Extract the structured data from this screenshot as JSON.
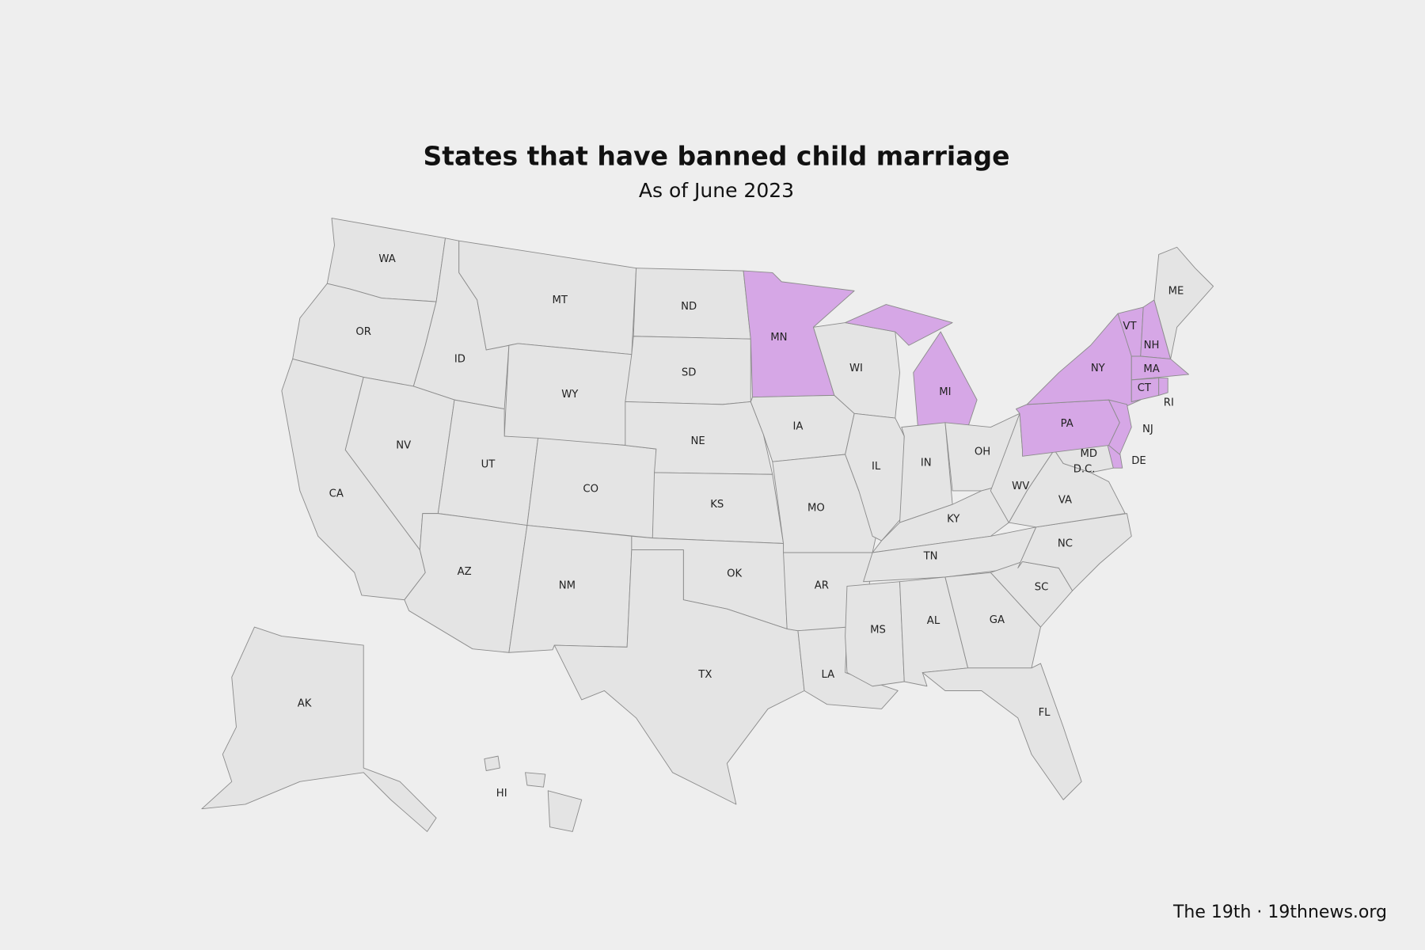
{
  "title": "States that have banned child marriage",
  "subtitle": "As of June 2023",
  "credit": "The 19th · 19thnews.org",
  "colors": {
    "highlighted": "#d6a7e6",
    "other": "#e4e4e4",
    "border": "#8c8c8c"
  },
  "states": [
    {
      "label": "WA",
      "highlighted": false
    },
    {
      "label": "OR",
      "highlighted": false
    },
    {
      "label": "CA",
      "highlighted": false
    },
    {
      "label": "ID",
      "highlighted": false
    },
    {
      "label": "NV",
      "highlighted": false
    },
    {
      "label": "MT",
      "highlighted": false
    },
    {
      "label": "WY",
      "highlighted": false
    },
    {
      "label": "UT",
      "highlighted": false
    },
    {
      "label": "AZ",
      "highlighted": false
    },
    {
      "label": "CO",
      "highlighted": false
    },
    {
      "label": "NM",
      "highlighted": false
    },
    {
      "label": "ND",
      "highlighted": false
    },
    {
      "label": "SD",
      "highlighted": false
    },
    {
      "label": "NE",
      "highlighted": false
    },
    {
      "label": "KS",
      "highlighted": false
    },
    {
      "label": "OK",
      "highlighted": false
    },
    {
      "label": "TX",
      "highlighted": false
    },
    {
      "label": "MN",
      "highlighted": true
    },
    {
      "label": "IA",
      "highlighted": false
    },
    {
      "label": "MO",
      "highlighted": false
    },
    {
      "label": "AR",
      "highlighted": false
    },
    {
      "label": "LA",
      "highlighted": false
    },
    {
      "label": "WI",
      "highlighted": false
    },
    {
      "label": "IL",
      "highlighted": false
    },
    {
      "label": "MI",
      "highlighted": true
    },
    {
      "label": "IN",
      "highlighted": false
    },
    {
      "label": "OH",
      "highlighted": false
    },
    {
      "label": "KY",
      "highlighted": false
    },
    {
      "label": "TN",
      "highlighted": false
    },
    {
      "label": "MS",
      "highlighted": false
    },
    {
      "label": "AL",
      "highlighted": false
    },
    {
      "label": "GA",
      "highlighted": false
    },
    {
      "label": "FL",
      "highlighted": false
    },
    {
      "label": "SC",
      "highlighted": false
    },
    {
      "label": "NC",
      "highlighted": false
    },
    {
      "label": "VA",
      "highlighted": false
    },
    {
      "label": "WV",
      "highlighted": false
    },
    {
      "label": "MD",
      "highlighted": false
    },
    {
      "label": "DE",
      "highlighted": true
    },
    {
      "label": "PA",
      "highlighted": true
    },
    {
      "label": "NY",
      "highlighted": true
    },
    {
      "label": "NJ",
      "highlighted": true
    },
    {
      "label": "VT",
      "highlighted": true
    },
    {
      "label": "NH",
      "highlighted": true
    },
    {
      "label": "MA",
      "highlighted": true
    },
    {
      "label": "CT",
      "highlighted": true
    },
    {
      "label": "RI",
      "highlighted": true
    },
    {
      "label": "ME",
      "highlighted": false
    },
    {
      "label": "AK",
      "highlighted": false
    },
    {
      "label": "HI",
      "highlighted": false
    },
    {
      "label": "D.C.",
      "highlighted": false
    }
  ]
}
